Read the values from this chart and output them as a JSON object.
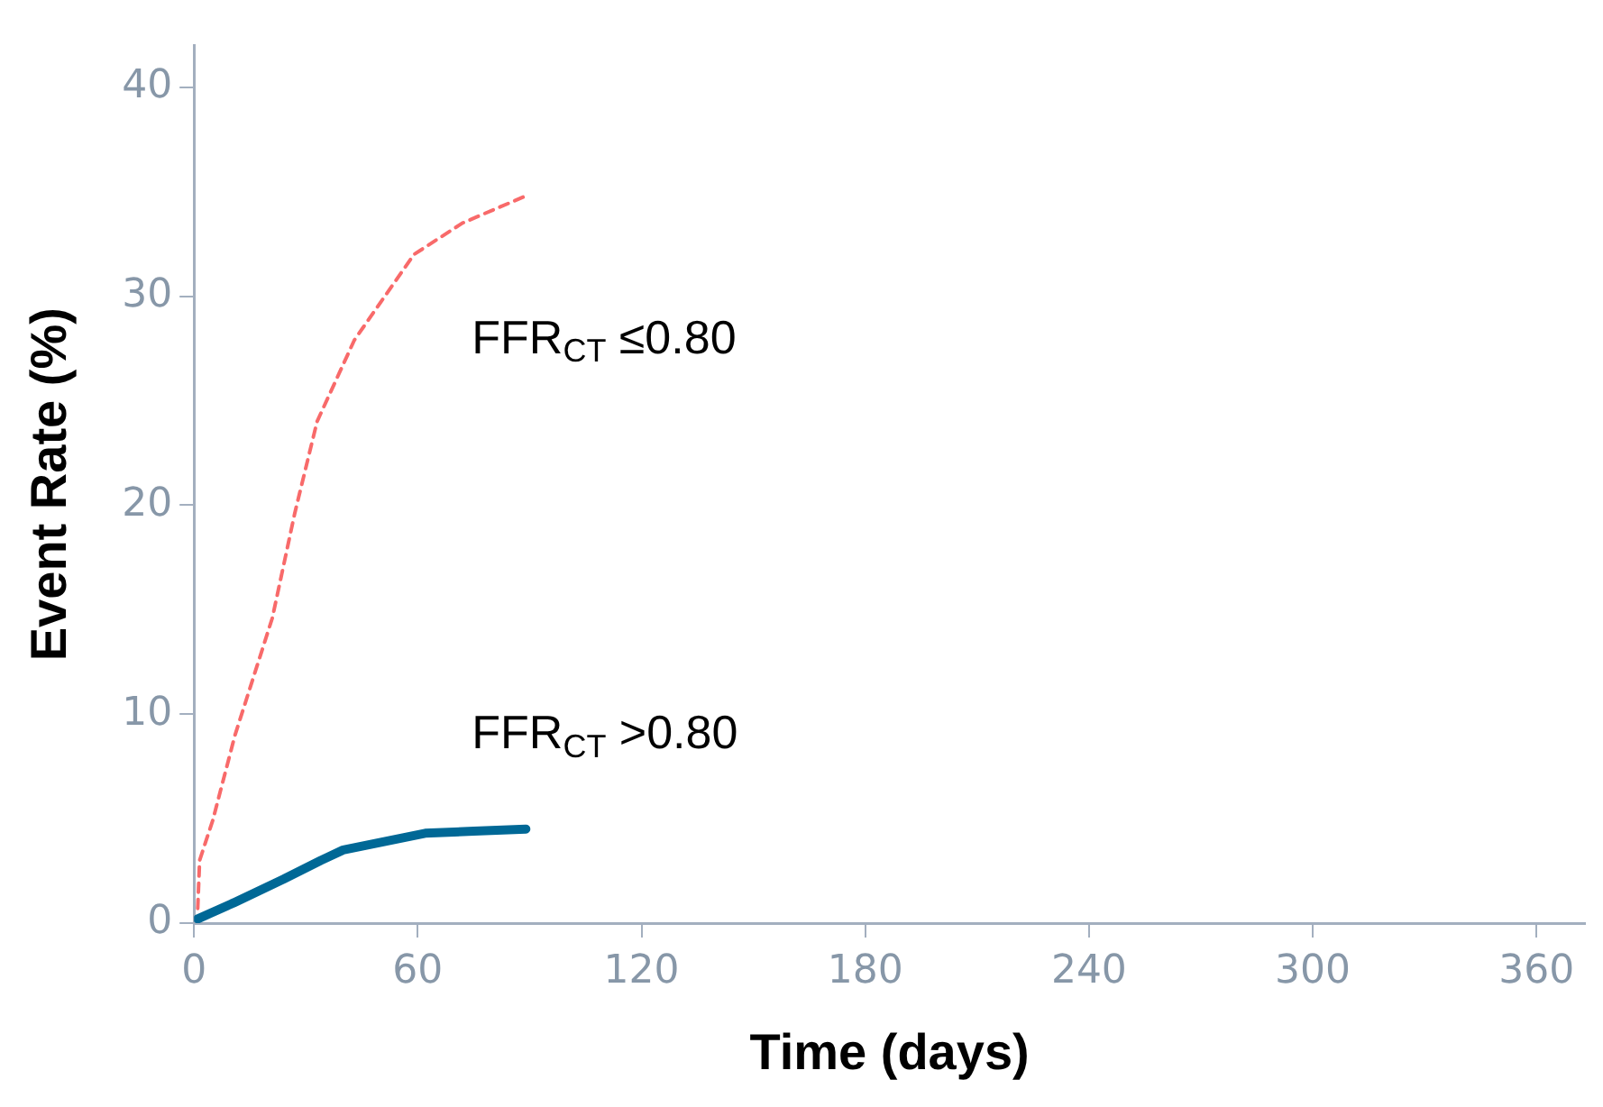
{
  "chart_data": {
    "type": "line",
    "xlabel": "Time (days)",
    "ylabel": "Event Rate (%)",
    "xlim": [
      0,
      373
    ],
    "xticks": [
      0,
      60,
      120,
      180,
      240,
      300,
      360
    ],
    "ylim": [
      0,
      42
    ],
    "yticks": [
      0,
      10,
      20,
      30,
      40
    ],
    "grid": false,
    "legend": false,
    "marker": "none",
    "series": [
      {
        "name": "FFR$_{CT}$ ≤0.80",
        "color": "#f86a6a",
        "line_style": "dashed",
        "x": [
          1,
          1.5,
          5,
          11,
          21,
          27,
          33,
          43,
          59,
          72,
          89
        ],
        "values": [
          0.7,
          3.0,
          4.9,
          9.0,
          14.6,
          19.6,
          24.0,
          27.9,
          32.0,
          33.5,
          34.8
        ]
      },
      {
        "name": "FFR$_{CT}$ >0.80",
        "color": "#006896",
        "line_style": "solid",
        "x": [
          1,
          11,
          24,
          34,
          40,
          51,
          62,
          75,
          89
        ],
        "values": [
          0.2,
          1.0,
          2.1,
          3.0,
          3.5,
          3.9,
          4.3,
          4.4,
          4.5
        ]
      }
    ]
  }
}
